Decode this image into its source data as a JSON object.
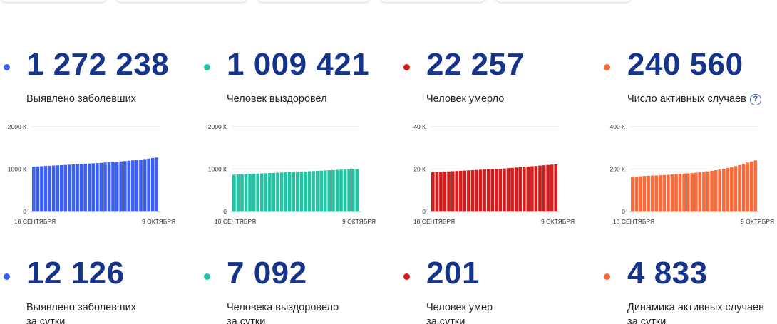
{
  "colors": {
    "number": "#16358a",
    "blue": "#3b5ff0",
    "teal": "#22c4a4",
    "red": "#d41c1c",
    "orange": "#fb6a3a",
    "axis": "#c9c9c9",
    "grid": "#e4e4e4",
    "tick": "#333333"
  },
  "stats": [
    {
      "value": "1 272 238",
      "label": "Выявлено заболевших",
      "color": "#3b5ff0",
      "daily_value": "12 126",
      "daily_label": "Выявлено заболевших",
      "daily_label_line2": "за сутки"
    },
    {
      "value": "1 009 421",
      "label": "Человек выздоровел",
      "color": "#22c4a4",
      "daily_value": "7 092",
      "daily_label": "Человека выздоровело",
      "daily_label_line2": "за сутки"
    },
    {
      "value": "22 257",
      "label": "Человек умерло",
      "color": "#d41c1c",
      "daily_value": "201",
      "daily_label": "Человек умер",
      "daily_label_line2": "за сутки"
    },
    {
      "value": "240 560",
      "label": "Число активных случаев",
      "help_icon": "question-circle-icon",
      "color": "#fb6a3a",
      "daily_value": "4 833",
      "daily_label": "Динамика активных случаев",
      "daily_label_line2": "за сутки"
    }
  ],
  "chart_data": [
    {
      "type": "bar",
      "title": "",
      "xlabel": "",
      "ylabel": "",
      "ylim": [
        0,
        2000
      ],
      "yticks": [
        0,
        1000,
        2000
      ],
      "ytick_labels": [
        "0",
        "1000 К",
        "2000 К"
      ],
      "xtick_labels": [
        "10 СЕНТЯБРЯ",
        "9 ОКТЯБРЯ"
      ],
      "grid": true,
      "series": [
        {
          "color": "#3b5ff0",
          "values": [
            1057,
            1063,
            1068,
            1073,
            1078,
            1083,
            1088,
            1093,
            1098,
            1103,
            1109,
            1114,
            1120,
            1125,
            1131,
            1136,
            1142,
            1148,
            1154,
            1160,
            1167,
            1174,
            1181,
            1189,
            1197,
            1206,
            1216,
            1226,
            1237,
            1248,
            1260,
            1272
          ]
        }
      ]
    },
    {
      "type": "bar",
      "title": "",
      "xlabel": "",
      "ylabel": "",
      "ylim": [
        0,
        2000
      ],
      "yticks": [
        0,
        1000,
        2000
      ],
      "ytick_labels": [
        "0",
        "1000 К",
        "2000 К"
      ],
      "xtick_labels": [
        "10 СЕНТЯБРЯ",
        "9 ОКТЯБРЯ"
      ],
      "grid": true,
      "series": [
        {
          "color": "#22c4a4",
          "values": [
            868,
            873,
            878,
            882,
            887,
            891,
            895,
            899,
            903,
            907,
            911,
            915,
            919,
            923,
            927,
            931,
            935,
            940,
            944,
            949,
            953,
            958,
            963,
            968,
            973,
            978,
            983,
            988,
            993,
            998,
            1004,
            1009
          ]
        }
      ]
    },
    {
      "type": "bar",
      "title": "",
      "xlabel": "",
      "ylabel": "",
      "ylim": [
        0,
        40
      ],
      "yticks": [
        0,
        20,
        40
      ],
      "ytick_labels": [
        "0",
        "20 К",
        "40 К"
      ],
      "xtick_labels": [
        "10 СЕНТЯБРЯ",
        "9 ОКТЯБРЯ"
      ],
      "grid": true,
      "series": [
        {
          "color": "#d41c1c",
          "values": [
            18.5,
            18.6,
            18.7,
            18.8,
            18.9,
            19.0,
            19.1,
            19.2,
            19.3,
            19.4,
            19.5,
            19.6,
            19.7,
            19.8,
            19.9,
            20.0,
            20.1,
            20.2,
            20.3,
            20.45,
            20.6,
            20.75,
            20.9,
            21.05,
            21.2,
            21.35,
            21.5,
            21.65,
            21.8,
            21.95,
            22.1,
            22.26
          ]
        }
      ]
    },
    {
      "type": "bar",
      "title": "",
      "xlabel": "",
      "ylabel": "",
      "ylim": [
        0,
        400
      ],
      "yticks": [
        0,
        200,
        400
      ],
      "ytick_labels": [
        "0",
        "200 К",
        "400 К"
      ],
      "xtick_labels": [
        "10 СЕНТЯБРЯ",
        "9 ОКТЯБРЯ"
      ],
      "grid": true,
      "series": [
        {
          "color": "#fb6a3a",
          "values": [
            164,
            165,
            166,
            168,
            169,
            170,
            170,
            171,
            172,
            173,
            175,
            176,
            178,
            179,
            180,
            181,
            183,
            185,
            187,
            189,
            192,
            195,
            198,
            201,
            205,
            209,
            214,
            219,
            225,
            231,
            236,
            241
          ]
        }
      ]
    }
  ]
}
